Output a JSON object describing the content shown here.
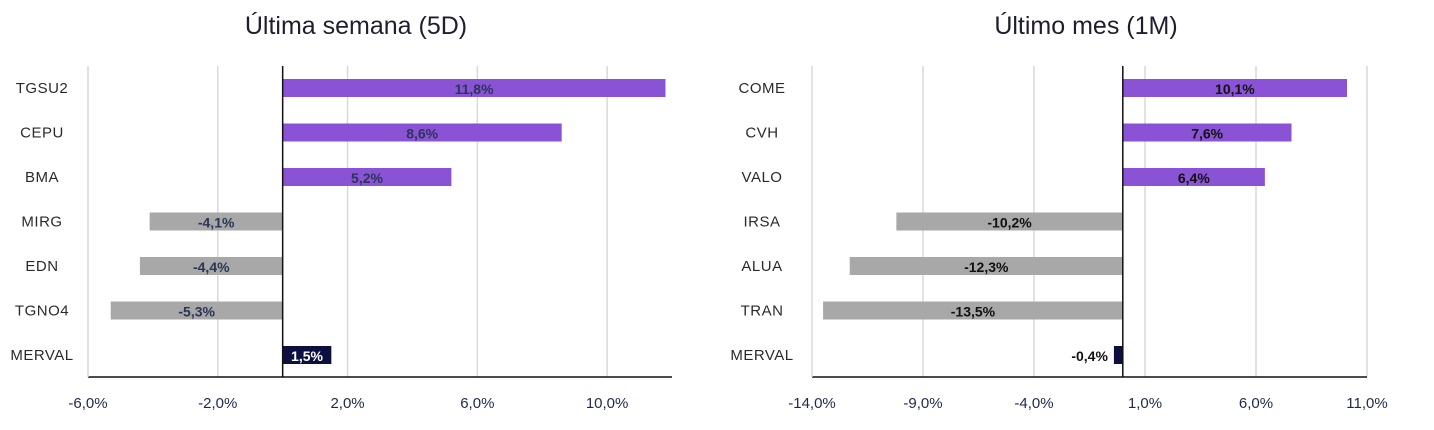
{
  "chart_data": [
    {
      "type": "bar",
      "orientation": "horizontal",
      "title": "Última semana (5D)",
      "categories": [
        "TGSU2",
        "CEPU",
        "BMA",
        "MIRG",
        "EDN",
        "TGNO4",
        "MERVAL"
      ],
      "values": [
        11.8,
        8.6,
        5.2,
        -4.1,
        -4.4,
        -5.3,
        1.5
      ],
      "labels": [
        "11,8%",
        "8,6%",
        "5,2%",
        "-4,1%",
        "-4,4%",
        "-5,3%",
        "1,5%"
      ],
      "ticks": [
        -6,
        -2,
        2,
        6,
        10
      ],
      "tick_labels": [
        "-6,0%",
        "-2,0%",
        "2,0%",
        "6,0%",
        "10,0%"
      ],
      "xlim": [
        -6,
        12
      ],
      "grid": true,
      "colors": {
        "positive": "#8a53d6",
        "negative": "#a8a8a8",
        "index": "#0d0f3f",
        "label": "#2b3558",
        "index_label": "#ffffff"
      }
    },
    {
      "type": "bar",
      "orientation": "horizontal",
      "title": "Último mes (1M)",
      "categories": [
        "COME",
        "CVH",
        "VALO",
        "IRSA",
        "ALUA",
        "TRAN",
        "MERVAL"
      ],
      "values": [
        10.1,
        7.6,
        6.4,
        -10.2,
        -12.3,
        -13.5,
        -0.4
      ],
      "labels": [
        "10,1%",
        "7,6%",
        "6,4%",
        "-10,2%",
        "-12,3%",
        "-13,5%",
        "-0,4%"
      ],
      "ticks": [
        -14,
        -9,
        -4,
        1,
        6,
        11
      ],
      "tick_labels": [
        "-14,0%",
        "-9,0%",
        "-4,0%",
        "1,0%",
        "6,0%",
        "11,0%"
      ],
      "xlim": [
        -14,
        11
      ],
      "grid": true,
      "colors": {
        "positive": "#8a53d6",
        "negative": "#a8a8a8",
        "index": "#0d0f3f",
        "label": "#111111",
        "index_label": "#111111"
      }
    }
  ]
}
